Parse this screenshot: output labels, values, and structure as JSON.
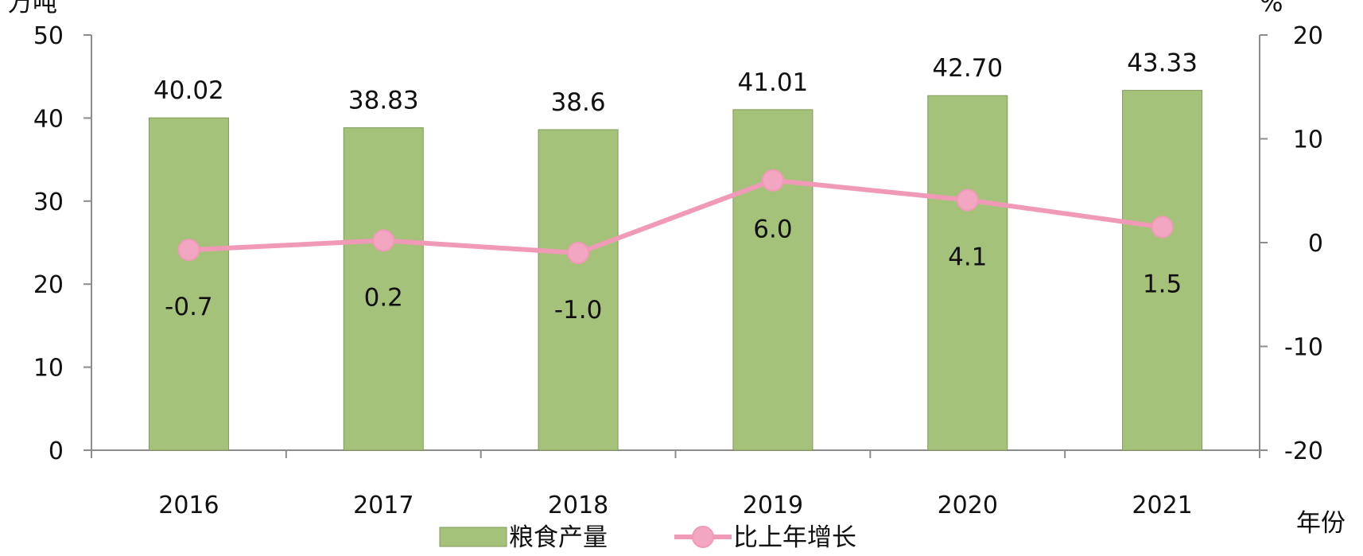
{
  "chart_data": {
    "type": "bar+line",
    "categories": [
      "2016",
      "2017",
      "2018",
      "2019",
      "2020",
      "2021"
    ],
    "series": [
      {
        "name": "粮食产量",
        "type": "bar",
        "axis": "left",
        "values": [
          40.02,
          38.83,
          38.6,
          41.01,
          42.7,
          43.33
        ],
        "labels": [
          "40.02",
          "38.83",
          "38.6",
          "41.01",
          "42.70",
          "43.33"
        ],
        "color": "#A5C27A"
      },
      {
        "name": "比上年增长",
        "type": "line",
        "axis": "right",
        "values": [
          -0.7,
          0.2,
          -1.0,
          6.0,
          4.1,
          1.5
        ],
        "labels": [
          "-0.7",
          "0.2",
          "-1.0",
          "6.0",
          "4.1",
          "1.5"
        ],
        "color": "#F09AB8"
      }
    ],
    "y_left": {
      "unit": "万吨",
      "range": [
        0,
        50
      ],
      "ticks": [
        "0",
        "10",
        "20",
        "30",
        "40",
        "50"
      ]
    },
    "y_right": {
      "unit": "%",
      "range": [
        -20,
        20
      ],
      "ticks": [
        "-20",
        "-10",
        "0",
        "10",
        "20"
      ]
    },
    "x_unit": "年份",
    "grid": false,
    "legend_position": "bottom"
  }
}
